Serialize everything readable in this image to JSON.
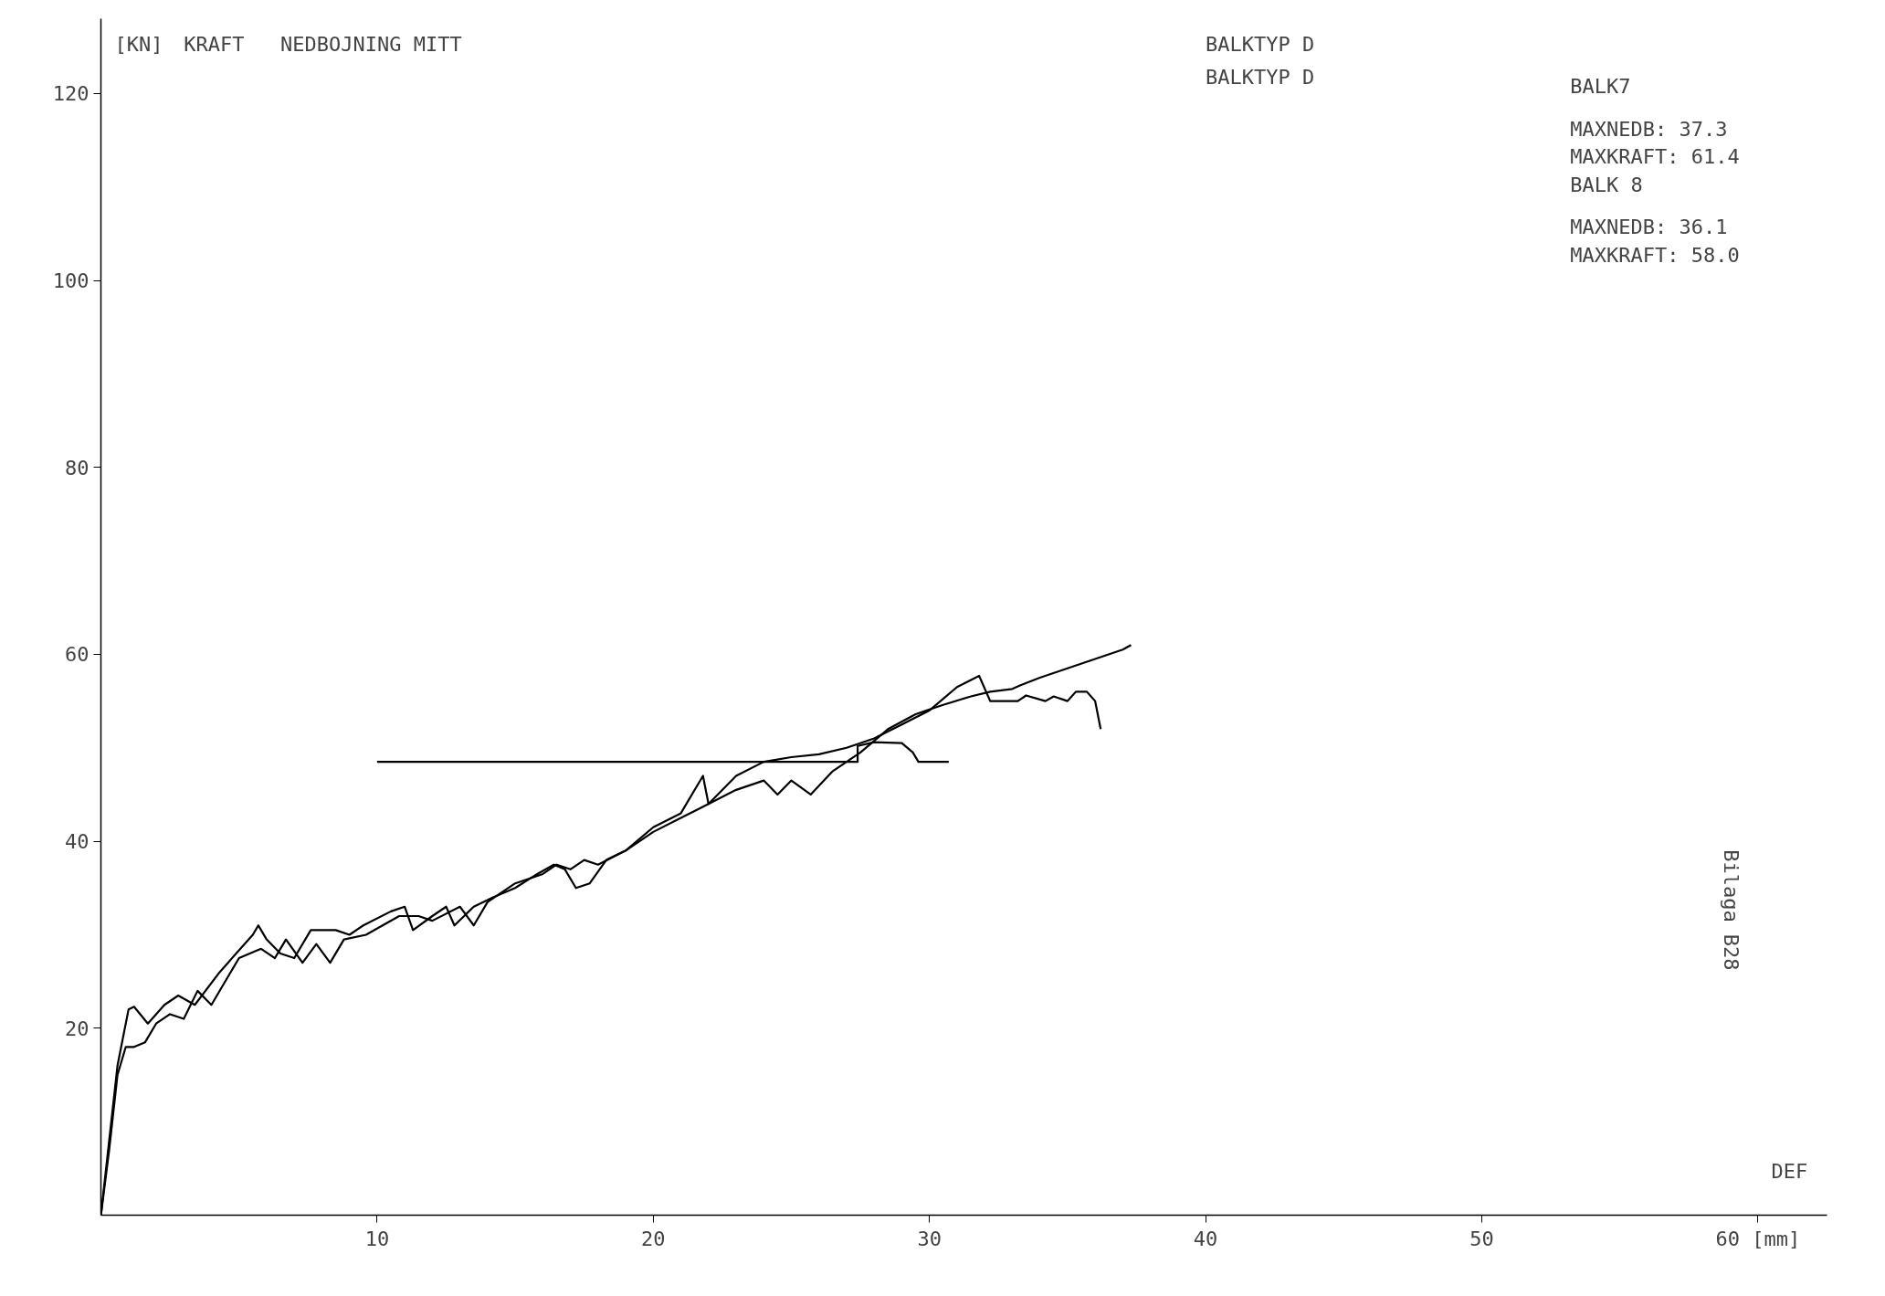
{
  "chart_data": {
    "type": "line",
    "title": "NEDBOJNING MITT",
    "ylabel": "[KN]",
    "xlabel": "DEF",
    "annotations": [
      "KRAFT",
      "BALKTYP D",
      "BALKTYP D",
      "BALK7",
      "MAXNEDB:    37.3",
      "MAXKRAFT:   61.4",
      "BALK 8",
      "MAXNEDB:    36.1",
      "MAXKRAFT:   58.0",
      "Bilaga  B28"
    ],
    "xlim": [
      0,
      62.5
    ],
    "ylim": [
      0,
      128
    ],
    "xticks": [
      10,
      20,
      30,
      40,
      50,
      {
        "value": 60,
        "label": "60 [mm]"
      }
    ],
    "yticks": [
      20,
      40,
      60,
      80,
      100,
      120
    ],
    "grid": false,
    "line_style": "solid",
    "marker": "none",
    "series": [
      {
        "color": "#000000",
        "x": [
          0,
          0.3,
          0.6,
          0.8,
          1.0,
          1.2,
          1.7,
          2.3,
          2.8,
          3.4,
          4.3,
          4.6,
          5.5,
          5.7,
          6.0,
          6.5,
          7.0,
          7.6,
          8.5,
          9.0,
          9.5,
          10.5,
          11.0,
          11.3,
          12.0,
          12.5,
          12.8,
          13.5,
          14.2,
          15.0,
          15.8,
          16.4,
          16.8,
          17.2,
          17.7,
          18.3,
          19.0,
          20.0,
          21.0,
          22.0,
          23.0,
          24.0,
          24.5,
          25.0,
          25.7,
          26.5,
          27.5,
          28.5,
          29.5,
          30.5,
          31.5,
          32.2,
          33.0,
          33.3,
          34.0,
          35.0,
          36.0,
          37.0,
          37.3
        ],
        "values": [
          0,
          8,
          16,
          19,
          22,
          22.3,
          20.5,
          22.5,
          23.5,
          22.5,
          26,
          27,
          30,
          31,
          29.5,
          28,
          27.5,
          30.5,
          30.5,
          30,
          31,
          32.5,
          33,
          30.5,
          32,
          33,
          31,
          33,
          34,
          35,
          36.5,
          37.5,
          37,
          35,
          35.5,
          38,
          39,
          41,
          42.5,
          44,
          45.5,
          46.5,
          45,
          46.5,
          45,
          47.5,
          49.5,
          52,
          53.6,
          54.6,
          55.5,
          56,
          56.3,
          56.7,
          57.5,
          58.5,
          59.5,
          60.5,
          61
        ]
      },
      {
        "color": "#000000",
        "x": [
          0,
          0.3,
          0.6,
          0.9,
          1.2,
          1.6,
          2.0,
          2.5,
          3.0,
          3.5,
          4.0,
          4.4,
          5.0,
          5.8,
          6.3,
          6.7,
          7.3,
          7.8,
          8.3,
          8.8,
          9.6,
          10.2,
          10.8,
          11.5,
          12.0,
          13.0,
          13.5,
          14.0,
          15.0,
          16.0,
          16.5,
          17.0,
          17.5,
          18.0,
          19.0,
          20.0,
          21.0,
          21.8,
          22.0,
          23.0,
          24.0,
          25.0,
          26.0,
          27.0,
          28.0,
          29.0,
          30.0,
          31.0,
          31.8,
          32.2,
          33.2,
          33.5,
          34.2,
          34.5,
          35.0,
          35.3,
          35.7,
          36.0,
          36.1,
          36.2
        ],
        "values": [
          0,
          7,
          15,
          18,
          18,
          18.5,
          20.5,
          21.5,
          21,
          24,
          22.5,
          24.5,
          27.5,
          28.5,
          27.5,
          29.5,
          27,
          29,
          27,
          29.5,
          30,
          31,
          32,
          32,
          31.5,
          33,
          31,
          33.5,
          35.5,
          36.5,
          37.5,
          37,
          38,
          37.5,
          39,
          41.5,
          43,
          47,
          44,
          47,
          48.5,
          49,
          49.3,
          50,
          51,
          52.5,
          54,
          56.5,
          57.7,
          55,
          55,
          55.6,
          55,
          55.5,
          55,
          56,
          56,
          55,
          53.5,
          52
        ]
      },
      {
        "color": "#000000",
        "x": [
          10,
          27.4,
          27.4,
          28.0,
          29.0,
          29.4,
          29.6,
          30.7
        ],
        "values": [
          48.5,
          48.5,
          50.2,
          50.6,
          50.5,
          49.5,
          48.5,
          48.5
        ]
      }
    ]
  }
}
